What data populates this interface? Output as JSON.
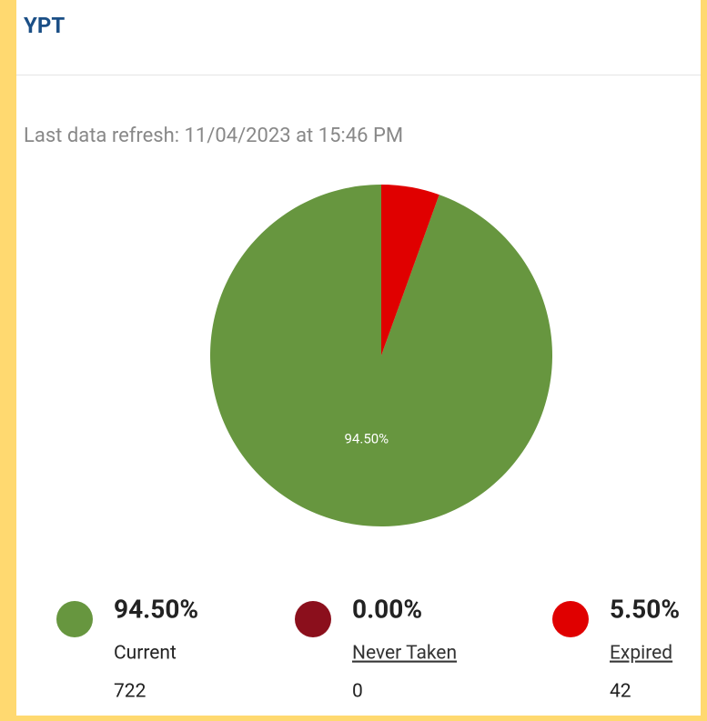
{
  "header": {
    "title": "YPT"
  },
  "refresh_text": "Last data refresh: 11/04/2023 at 15:46 PM",
  "chart_data": {
    "type": "pie",
    "categories": [
      "Current",
      "Never Taken",
      "Expired"
    ],
    "values": [
      94.5,
      0,
      5.5
    ],
    "value_labels": [
      "94.50%",
      "0.00%",
      "5.50%"
    ],
    "colors": [
      "#67963f",
      "#8b0f1c",
      "#e00000"
    ],
    "counts": [
      722,
      0,
      42
    ]
  }
}
